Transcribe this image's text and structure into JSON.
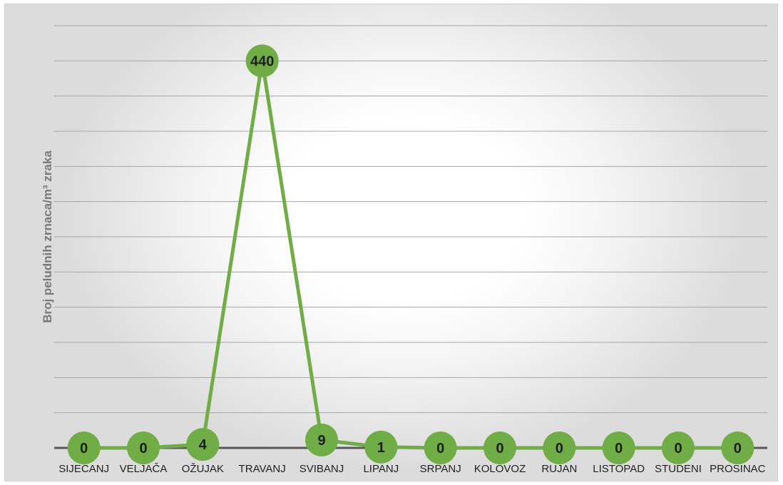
{
  "chart_data": {
    "type": "line",
    "ylabel": "Broj peludnih zrnaca/m³ zraka",
    "xlabel": "",
    "title": "",
    "categories": [
      "SIJEČANJ",
      "VELJAČA",
      "OŽUJAK",
      "TRAVANJ",
      "SVIBANJ",
      "LIPANJ",
      "SRPANJ",
      "KOLOVOZ",
      "RUJAN",
      "LISTOPAD",
      "STUDENI",
      "PROSINAC"
    ],
    "series": [
      {
        "values": [
          0,
          0,
          4,
          440,
          9,
          1,
          0,
          0,
          0,
          0,
          0,
          0
        ]
      }
    ],
    "data_labels": [
      "0",
      "0",
      "4",
      "440",
      "9",
      "1",
      "0",
      "0",
      "0",
      "0",
      "0",
      "0"
    ],
    "ylim": [
      0,
      480
    ],
    "grid": true,
    "legend": "none",
    "colors": {
      "line": "#70ad47",
      "marker": "#70ad47",
      "grid": "#a6a6a6",
      "axis": "#595959",
      "label": "#1e1e1e"
    }
  }
}
